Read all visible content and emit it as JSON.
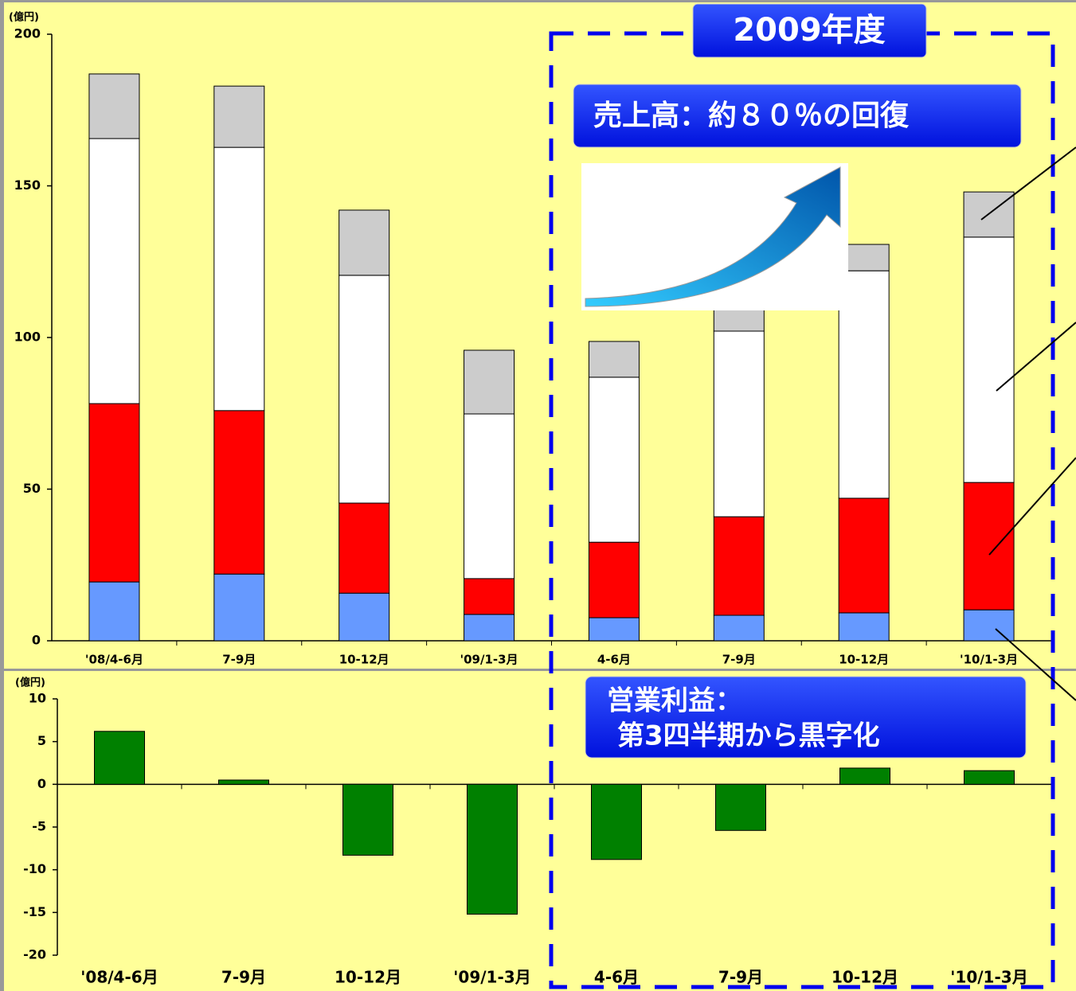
{
  "chart_data": [
    {
      "type": "stacked_bar",
      "ylabel": "(億円)",
      "categories": [
        "'08/4-6月",
        "7-9月",
        "10-12月",
        "'09/1-3月",
        "4-6月",
        "7-9月",
        "10-12月",
        "'10/1-3月"
      ],
      "series": [
        {
          "color": "#6699ff",
          "values": [
            19.4,
            22.0,
            15.7,
            8.7,
            7.6,
            8.4,
            9.2,
            10.2
          ]
        },
        {
          "color": "#ff0000",
          "values": [
            58.8,
            53.9,
            29.7,
            11.8,
            24.9,
            32.5,
            37.8,
            42.0
          ]
        },
        {
          "color": "#ffffff",
          "values": [
            87.4,
            86.8,
            75.1,
            54.3,
            54.4,
            61.2,
            75.0,
            80.9
          ]
        },
        {
          "color": "#cccccc",
          "values": [
            21.3,
            20.2,
            21.5,
            21.0,
            11.8,
            9.9,
            8.7,
            14.9
          ]
        }
      ],
      "ylim": [
        0,
        200
      ],
      "yticks": [
        0,
        50,
        100,
        150,
        200
      ],
      "annotations": [
        "2009年度",
        "売上高：約８０％の回復"
      ]
    },
    {
      "type": "bar",
      "ylabel": "(億円)",
      "categories": [
        "'08/4-6月",
        "7-9月",
        "10-12月",
        "'09/1-3月",
        "4-6月",
        "7-9月",
        "10-12月",
        "'10/1-3月"
      ],
      "values": [
        6.2,
        0.5,
        -8.3,
        -15.2,
        -8.8,
        -5.4,
        1.9,
        1.6
      ],
      "color": "#008000",
      "ylim": [
        -20,
        10
      ],
      "yticks": [
        -20,
        -15,
        -10,
        -5,
        0,
        5,
        10
      ],
      "annotations": [
        "営業利益：",
        "第3四半期から黒字化"
      ]
    }
  ]
}
